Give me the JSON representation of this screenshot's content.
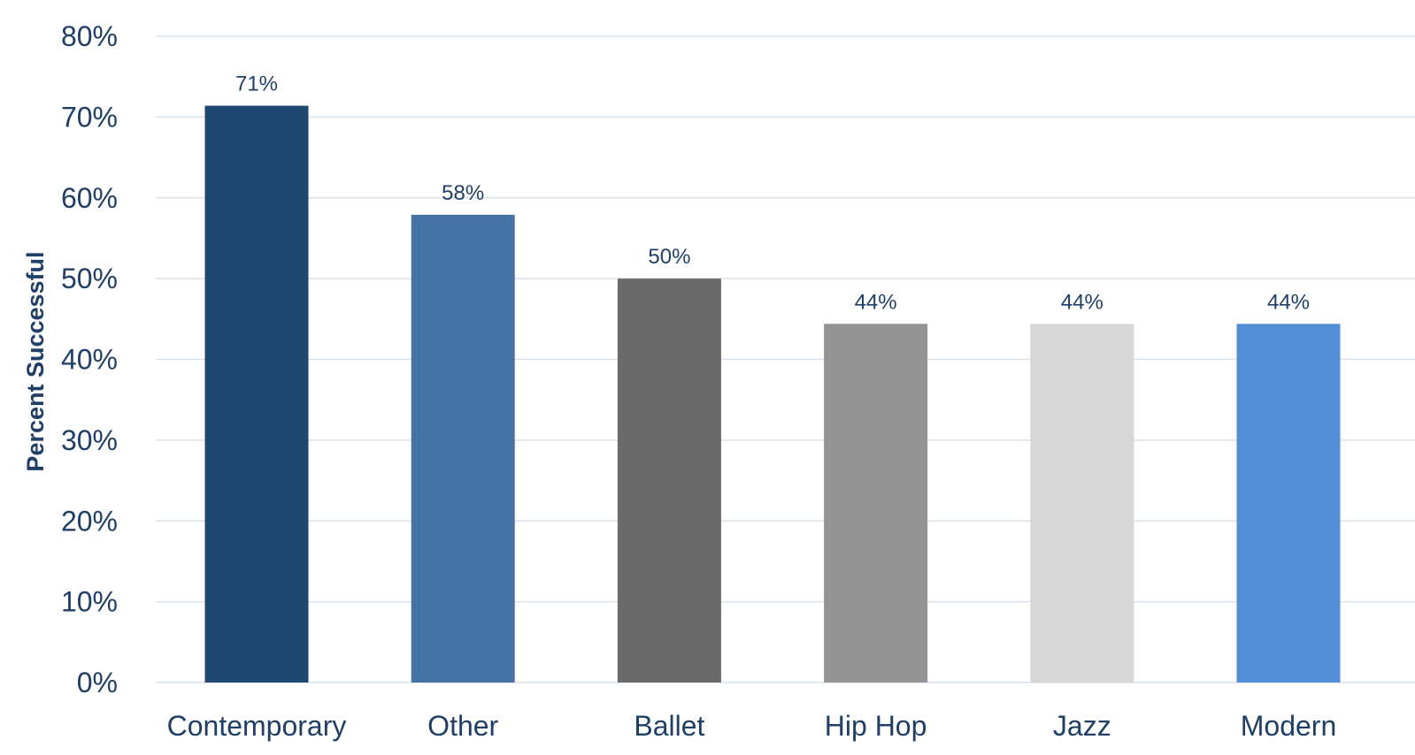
{
  "chart_data": {
    "type": "bar",
    "title": "",
    "xlabel": "",
    "ylabel": "Percent Successful",
    "categories": [
      "Contemporary",
      "Other",
      "Ballet",
      "Hip Hop",
      "Jazz",
      "Modern"
    ],
    "values": [
      71.4,
      57.9,
      50.0,
      44.4,
      44.4,
      44.4
    ],
    "data_labels": [
      "71%",
      "58%",
      "50%",
      "44%",
      "44%",
      "44%"
    ],
    "bar_colors": [
      "#1f4870",
      "#4573a5",
      "#6a6a6a",
      "#939393",
      "#d7d7d7",
      "#548ed6"
    ],
    "ylim": [
      0,
      80
    ],
    "yticks": [
      0,
      10,
      20,
      30,
      40,
      50,
      60,
      70,
      80
    ],
    "ytick_labels": [
      "0%",
      "10%",
      "20%",
      "30%",
      "40%",
      "50%",
      "60%",
      "70%",
      "80%"
    ],
    "grid": true,
    "legend": "none"
  }
}
